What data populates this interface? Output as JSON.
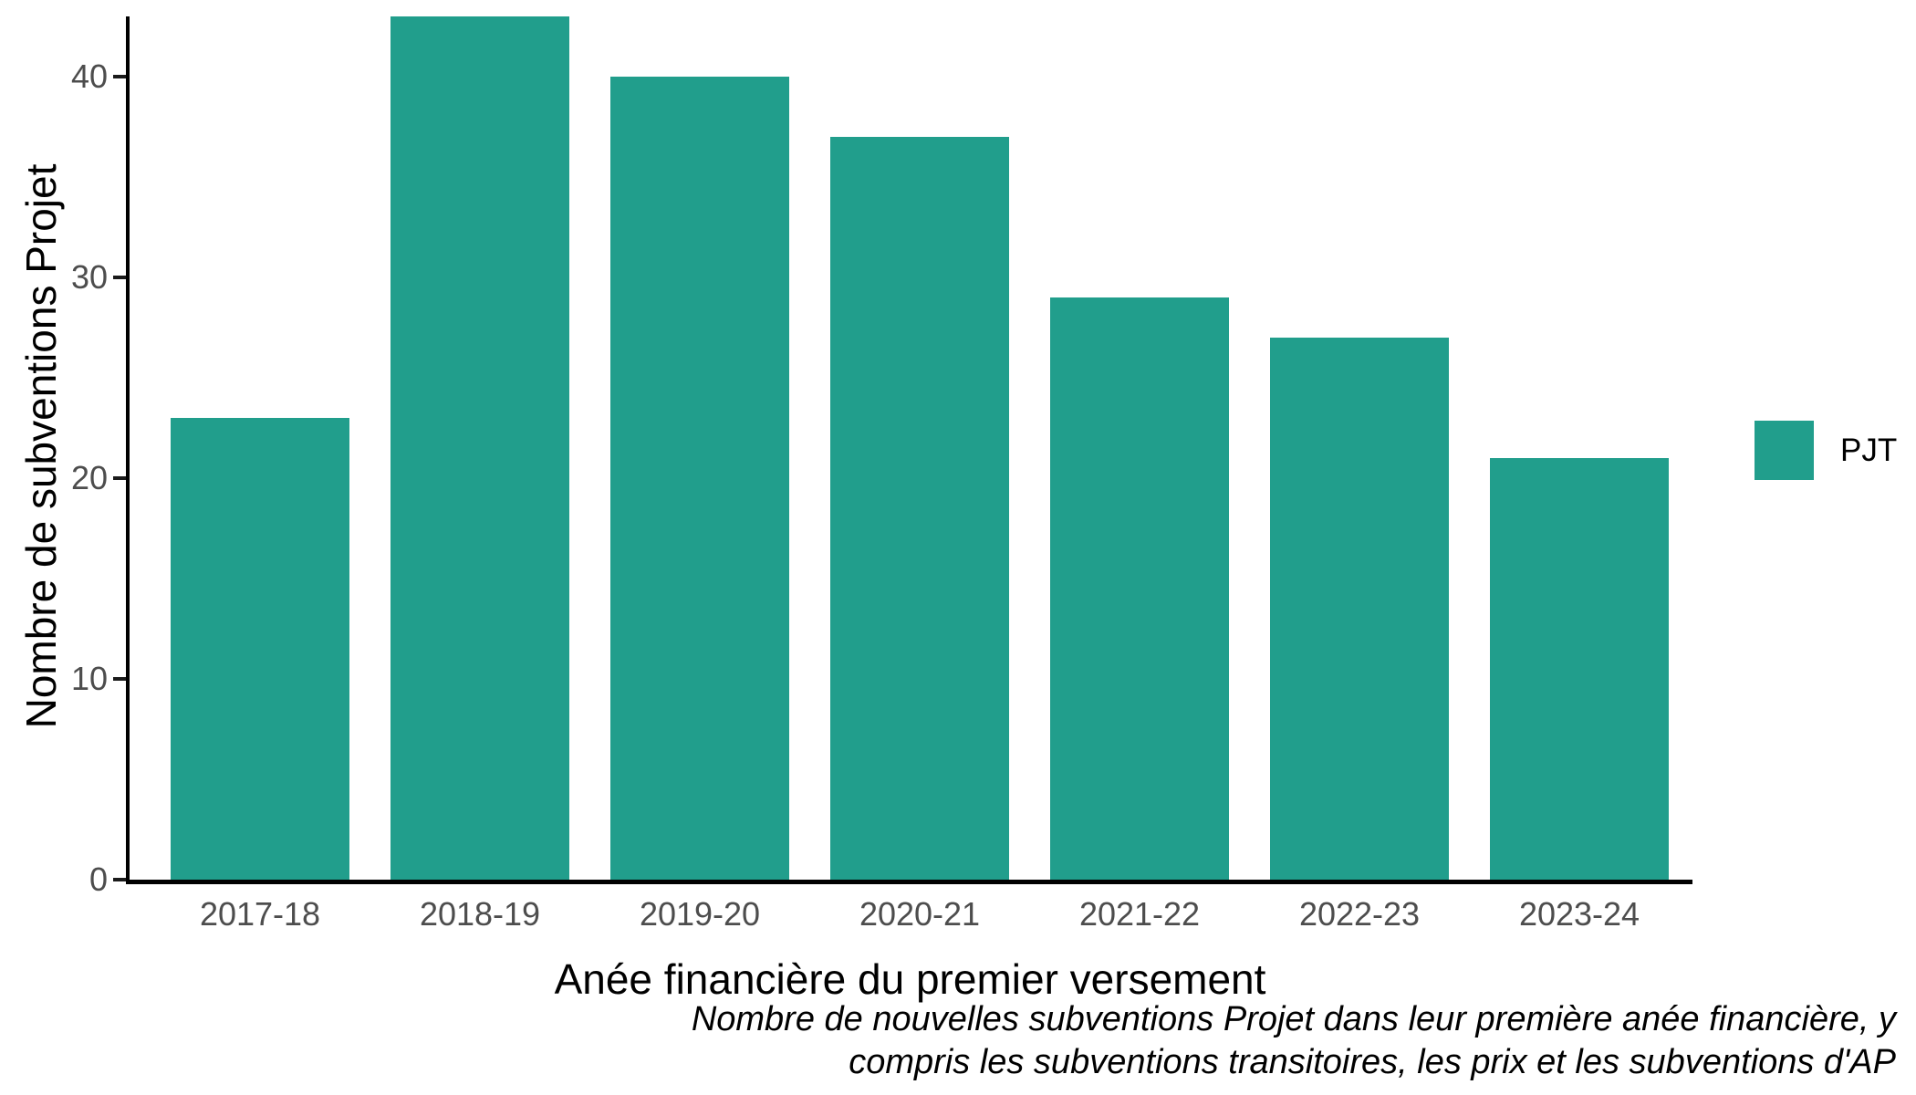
{
  "chart_data": {
    "type": "bar",
    "title": "",
    "categories": [
      "2017-18",
      "2018-19",
      "2019-20",
      "2020-21",
      "2021-22",
      "2022-23",
      "2023-24"
    ],
    "series": [
      {
        "name": "PJT",
        "color": "#219E8C",
        "values": [
          23,
          43,
          40,
          37,
          29,
          27,
          21
        ]
      }
    ],
    "xlabel": "Anée financière du premier versement",
    "ylabel": "Nombre de subventions Projet",
    "yticks": [
      0,
      10,
      20,
      30,
      40
    ],
    "ylim": [
      0,
      43
    ],
    "grid": false,
    "legend_position": "right",
    "caption_lines": [
      "Nombre de nouvelles subventions Projet dans leur première anée financière, y",
      "compris les subventions transitoires, les prix et les subventions d'AP"
    ]
  },
  "legend": {
    "items": [
      {
        "label": "PJT",
        "color": "#219E8C"
      }
    ]
  },
  "colors": {
    "bar": "#219E8C",
    "axis_line": "#000000",
    "tick_mark": "#1a1a1a",
    "tick_label": "#4d4d4d",
    "text": "#000000"
  }
}
